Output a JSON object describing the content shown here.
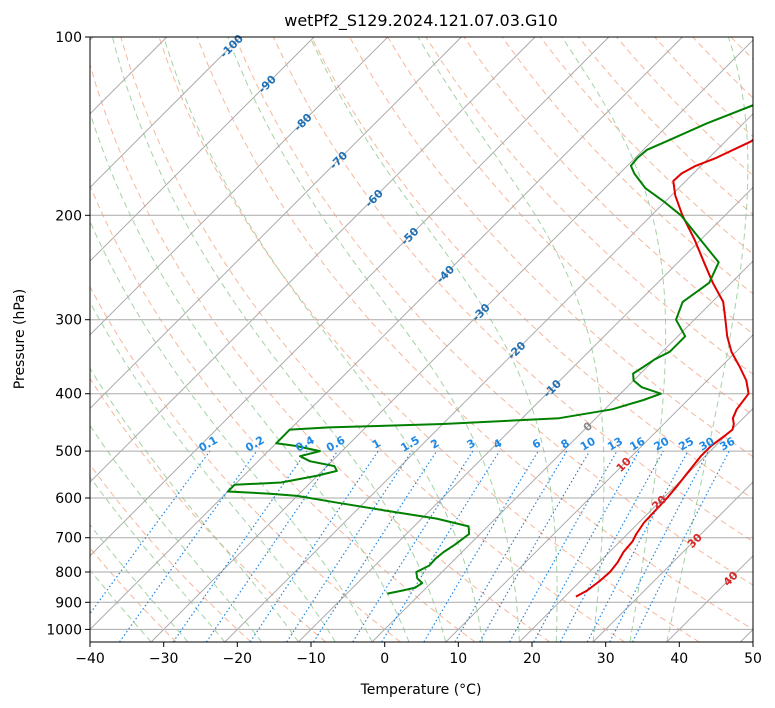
{
  "chart_data": {
    "type": "line",
    "subtype": "skew-t log-p diagram",
    "title": "wetPf2_S129.2024.121.07.03.G10",
    "xlabel": "Temperature (°C)",
    "ylabel": "Pressure (hPa)",
    "xlim": [
      -40,
      50
    ],
    "ylim": [
      1050,
      100
    ],
    "yscale": "log",
    "grid": true,
    "xticks": [
      -40,
      -30,
      -20,
      -10,
      0,
      10,
      20,
      30,
      40,
      50
    ],
    "xtick_labels": [
      "−40",
      "−30",
      "−20",
      "−10",
      "0",
      "10",
      "20",
      "30",
      "40",
      "50"
    ],
    "yticks": [
      100,
      200,
      300,
      400,
      500,
      600,
      700,
      800,
      900,
      1000
    ],
    "ytick_labels": [
      "100",
      "200",
      "300",
      "400",
      "500",
      "600",
      "700",
      "800",
      "900",
      "1000"
    ],
    "series": [
      {
        "color": "#e00000",
        "points": [
          [
            880,
            21.5
          ],
          [
            860,
            22.2
          ],
          [
            830,
            22.6
          ],
          [
            800,
            22.8
          ],
          [
            770,
            22.5
          ],
          [
            740,
            21.9
          ],
          [
            710,
            21.7
          ],
          [
            690,
            21.2
          ],
          [
            660,
            20.7
          ],
          [
            630,
            20.6
          ],
          [
            600,
            20.5
          ],
          [
            570,
            20.2
          ],
          [
            540,
            19.8
          ],
          [
            510,
            19.4
          ],
          [
            490,
            19.4
          ],
          [
            470,
            19.9
          ],
          [
            460,
            20.1
          ],
          [
            450,
            19.5
          ],
          [
            440,
            18.6
          ],
          [
            425,
            17.9
          ],
          [
            400,
            17.4
          ],
          [
            380,
            15.3
          ],
          [
            360,
            12.5
          ],
          [
            340,
            9.4
          ],
          [
            320,
            6.7
          ],
          [
            300,
            4.2
          ],
          [
            280,
            1.5
          ],
          [
            260,
            -2.5
          ],
          [
            240,
            -6.5
          ],
          [
            220,
            -10.8
          ],
          [
            200,
            -15.8
          ],
          [
            185,
            -19.5
          ],
          [
            175,
            -21.7
          ],
          [
            170,
            -21.6
          ],
          [
            165,
            -20.7
          ],
          [
            160,
            -19.0
          ],
          [
            150,
            -16.5
          ],
          [
            140,
            -16.0
          ],
          [
            130,
            -16.2
          ],
          [
            120,
            -16.5
          ],
          [
            110,
            -17.8
          ],
          [
            100,
            -18.8
          ]
        ]
      },
      {
        "color": "#008000",
        "points": [
          [
            870,
            -4.5
          ],
          [
            860,
            -2.9
          ],
          [
            850,
            -1.5
          ],
          [
            835,
            -1.2
          ],
          [
            820,
            -2.5
          ],
          [
            800,
            -3.5
          ],
          [
            780,
            -2.6
          ],
          [
            760,
            -2.7
          ],
          [
            740,
            -2.5
          ],
          [
            720,
            -2.0
          ],
          [
            690,
            -1.5
          ],
          [
            670,
            -2.6
          ],
          [
            650,
            -8.0
          ],
          [
            630,
            -16.0
          ],
          [
            610,
            -24.0
          ],
          [
            595,
            -30.0
          ],
          [
            590,
            -34.0
          ],
          [
            585,
            -40.0
          ],
          [
            570,
            -40.0
          ],
          [
            565,
            -34.0
          ],
          [
            550,
            -30.0
          ],
          [
            540,
            -28.0
          ],
          [
            530,
            -29.0
          ],
          [
            520,
            -33.0
          ],
          [
            510,
            -35.0
          ],
          [
            500,
            -33.0
          ],
          [
            490,
            -37.0
          ],
          [
            485,
            -40.0
          ],
          [
            460,
            -40.0
          ],
          [
            456,
            -35.0
          ],
          [
            450,
            -20.0
          ],
          [
            440,
            -5.0
          ],
          [
            425,
            1.0
          ],
          [
            410,
            4.0
          ],
          [
            400,
            5.5
          ],
          [
            390,
            2.0
          ],
          [
            380,
            0.0
          ],
          [
            370,
            -1.0
          ],
          [
            360,
            -0.5
          ],
          [
            350,
            0.0
          ],
          [
            340,
            1.0
          ],
          [
            320,
            1.0
          ],
          [
            300,
            -2.5
          ],
          [
            280,
            -4.0
          ],
          [
            260,
            -3.0
          ],
          [
            240,
            -4.5
          ],
          [
            220,
            -10.0
          ],
          [
            200,
            -16.0
          ],
          [
            190,
            -20.0
          ],
          [
            180,
            -24.5
          ],
          [
            170,
            -28.0
          ],
          [
            165,
            -29.5
          ],
          [
            160,
            -29.7
          ],
          [
            155,
            -29.5
          ],
          [
            150,
            -28.0
          ],
          [
            140,
            -25.0
          ],
          [
            130,
            -21.0
          ],
          [
            120,
            -18.0
          ],
          [
            110,
            -16.0
          ],
          [
            100,
            -13.0
          ]
        ]
      }
    ],
    "reference_lines": {
      "isotherm_labels": [
        "-100",
        "-90",
        "-80",
        "-70",
        "-60",
        "-50",
        "-40",
        "-30",
        "-20",
        "-10",
        "0",
        "10",
        "20",
        "30",
        "40"
      ],
      "mixing_ratio_labels": [
        "0.1",
        "0.2",
        "0.4",
        "0.6",
        "1",
        "1.5",
        "2",
        "3",
        "4",
        "6",
        "8",
        "10",
        "13",
        "16",
        "20",
        "25",
        "30",
        "36"
      ]
    }
  },
  "colors": {
    "temperature": "#e00000",
    "dewpoint": "#008000",
    "dry_adiabat": "#f4a582",
    "moist_adiabat": "#7fbf7f",
    "mixing_ratio": "#1e88e5",
    "isotherm": "#aaaaaa",
    "isotherm_label_blue": "#1f6fb4",
    "isotherm_label_red": "#d62728",
    "isotherm_label_zero": "#888888"
  }
}
